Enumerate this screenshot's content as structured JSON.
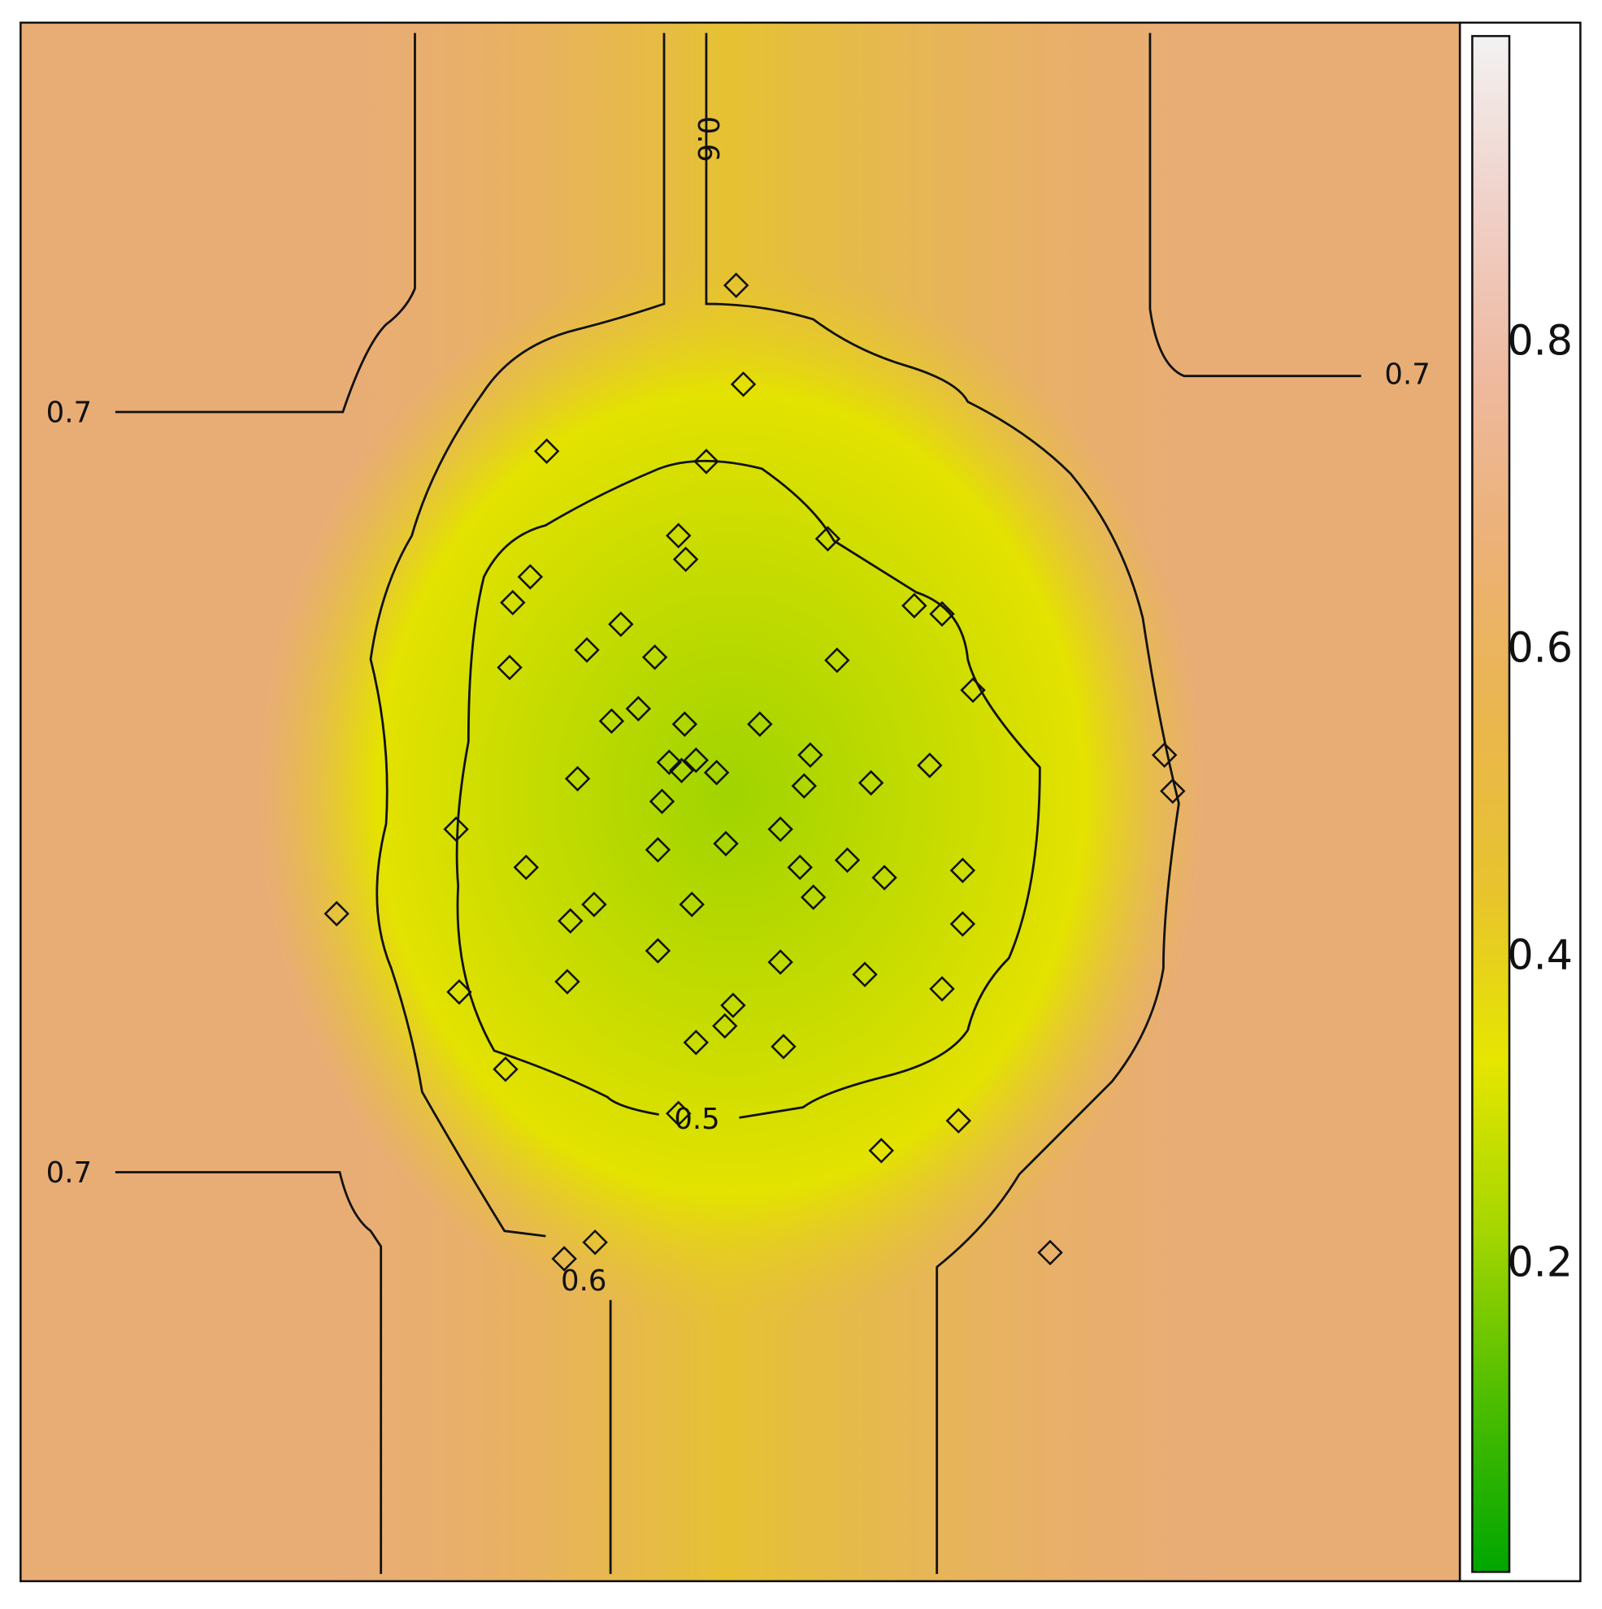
{
  "chart_data": {
    "type": "contour-scatter",
    "x": [
      695,
      702,
      511,
      666,
      639,
      646,
      784,
      495,
      478,
      868,
      895,
      583,
      550,
      616,
      475,
      793,
      925,
      600,
      574,
      645,
      718,
      767,
      630,
      656,
      642,
      676,
      883,
      541,
      761,
      826,
      623,
      1111,
      1119,
      423,
      738,
      619,
      685,
      491,
      803,
      757,
      839,
      915,
      770,
      557,
      534,
      652,
      307,
      915,
      619,
      738,
      531,
      820,
      895,
      426,
      692,
      684,
      656,
      741,
      471,
      639,
      911,
      836,
      558,
      528,
      1000
    ],
    "y": [
      1258,
      1162,
      1097,
      1087,
      1015,
      992,
      1012,
      975,
      950,
      947,
      939,
      929,
      904,
      897,
      887,
      894,
      865,
      847,
      835,
      832,
      832,
      802,
      795,
      797,
      787,
      785,
      792,
      779,
      772,
      775,
      757,
      802,
      767,
      730,
      730,
      710,
      716,
      693,
      700,
      693,
      683,
      690,
      664,
      657,
      641,
      657,
      648,
      638,
      612,
      601,
      582,
      589,
      575,
      572,
      559,
      539,
      523,
      519,
      497,
      454,
      447,
      418,
      329,
      313,
      319
    ],
    "xlim": [
      0,
      1398
    ],
    "ylim": [
      0,
      1513
    ],
    "contour_labels": [
      0.7,
      0.7,
      0.7,
      0.6,
      0.6,
      0.5
    ],
    "colorbar": {
      "lim": [
        0,
        1
      ],
      "ticks": [
        0.2,
        0.4,
        0.6,
        0.8
      ],
      "colors": [
        "#00A600",
        "#4DBD00",
        "#A5D600",
        "#E6E600",
        "#E8C32E",
        "#EAB64E",
        "#ECB176",
        "#EEB99F",
        "#F0D0C8",
        "#F2F2F2"
      ]
    }
  }
}
